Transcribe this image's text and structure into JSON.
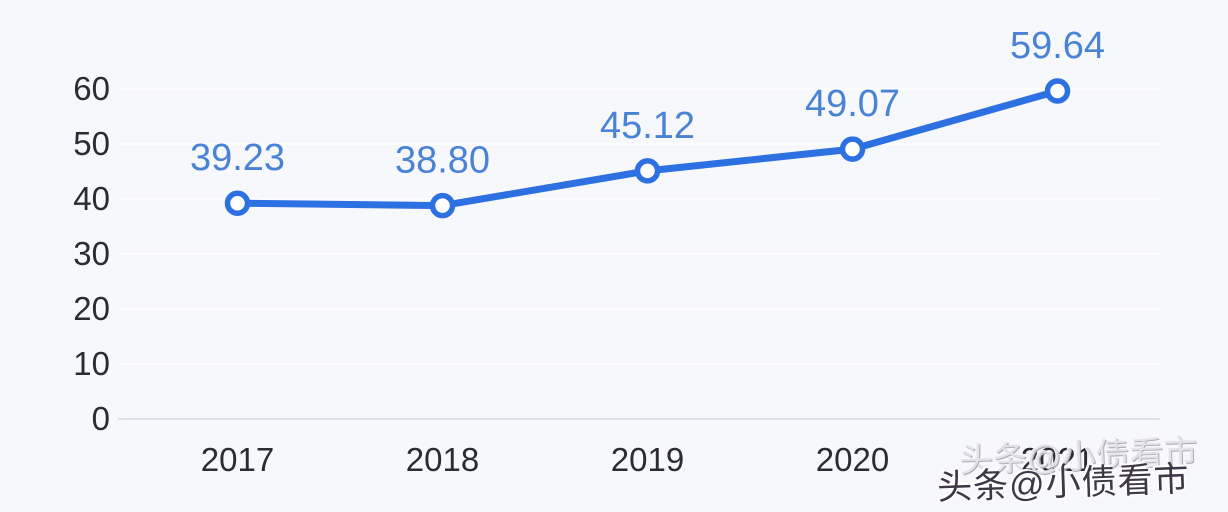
{
  "colors": {
    "background": "#f7f8fb",
    "line": "#2c70e2",
    "data_label": "#4a82d6",
    "tick_label": "#2b2b33",
    "axis_line": "#dcdfe5",
    "grid_line": "#ffffff",
    "marker_fill": "#ffffff"
  },
  "chart_data": {
    "type": "line",
    "title": "",
    "xlabel": "",
    "ylabel": "",
    "categories": [
      "2017",
      "2018",
      "2019",
      "2020",
      "2021"
    ],
    "values": [
      39.23,
      38.8,
      45.12,
      49.07,
      59.64
    ],
    "value_labels": [
      "39.23",
      "38.80",
      "45.12",
      "49.07",
      "59.64"
    ],
    "yticks": [
      0,
      10,
      20,
      30,
      40,
      50,
      60
    ],
    "ylim": [
      0,
      60
    ],
    "grid": true,
    "legend": "none",
    "marker": "open-circle"
  },
  "watermark": {
    "upper": "头条@小债看市",
    "lower": "头条@小债看市"
  }
}
